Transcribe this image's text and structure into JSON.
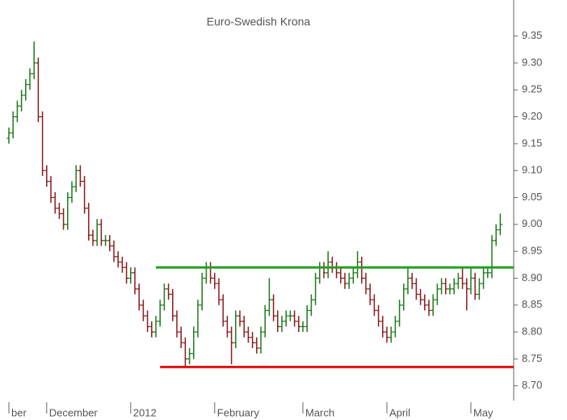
{
  "chart_data": {
    "type": "ohlc",
    "title": "Euro-Swedish Krona",
    "up_color": "#1f7a1f",
    "down_color": "#8a1c1c",
    "ylim": [
      8.68,
      9.42
    ],
    "yticks": [
      {
        "value": 8.7,
        "label": "8.70"
      },
      8.75,
      {
        "value": 8.8,
        "label": "8.80"
      },
      8.85,
      {
        "value": 8.9,
        "label": "8.90"
      },
      8.95,
      {
        "value": 9.0,
        "label": "9.00"
      },
      9.05,
      {
        "value": 9.1,
        "label": "9.10"
      },
      9.15,
      {
        "value": 9.2,
        "label": "9.20"
      },
      9.25,
      {
        "value": 9.3,
        "label": "9.30"
      },
      9.35
    ],
    "xlabels": [
      {
        "label": "ber",
        "index": 0
      },
      {
        "label": "December",
        "index": 9
      },
      {
        "label": "2012",
        "index": 29
      },
      {
        "label": "February",
        "index": 49
      },
      {
        "label": "March",
        "index": 70
      },
      {
        "label": "April",
        "index": 90
      },
      {
        "label": "May",
        "index": 110
      }
    ],
    "lines": [
      {
        "value": 8.92,
        "color": "#22a022",
        "start_index": 35
      },
      {
        "value": 8.735,
        "color": "#e01010",
        "start_index": 36
      }
    ],
    "open": [
      9.16,
      9.17,
      9.2,
      9.22,
      9.24,
      9.26,
      9.28,
      9.3,
      9.2,
      9.1,
      9.08,
      9.05,
      9.03,
      9.02,
      9.0,
      9.05,
      9.07,
      9.1,
      9.08,
      9.03,
      8.98,
      8.97,
      9.0,
      8.97,
      8.97,
      8.96,
      8.94,
      8.93,
      8.92,
      8.9,
      8.91,
      8.88,
      8.85,
      8.83,
      8.81,
      8.8,
      8.82,
      8.85,
      8.88,
      8.87,
      8.83,
      8.8,
      8.78,
      8.75,
      8.76,
      8.8,
      8.85,
      8.9,
      8.92,
      8.9,
      8.89,
      8.86,
      8.82,
      8.8,
      8.78,
      8.83,
      8.82,
      8.8,
      8.79,
      8.78,
      8.77,
      8.8,
      8.84,
      8.86,
      8.83,
      8.81,
      8.82,
      8.83,
      8.83,
      8.82,
      8.81,
      8.81,
      8.84,
      8.86,
      8.9,
      8.92,
      8.91,
      8.93,
      8.92,
      8.91,
      8.9,
      8.89,
      8.9,
      8.91,
      8.93,
      8.9,
      8.88,
      8.86,
      8.84,
      8.82,
      8.8,
      8.79,
      8.8,
      8.82,
      8.85,
      8.88,
      8.9,
      8.89,
      8.87,
      8.86,
      8.85,
      8.84,
      8.86,
      8.88,
      8.89,
      8.88,
      8.88,
      8.89,
      8.9,
      8.89,
      8.88,
      8.9,
      8.87,
      8.89,
      8.91,
      8.91,
      8.97,
      8.99
    ],
    "high": [
      9.18,
      9.21,
      9.23,
      9.25,
      9.27,
      9.29,
      9.34,
      9.31,
      9.21,
      9.11,
      9.09,
      9.06,
      9.04,
      9.03,
      9.06,
      9.08,
      9.11,
      9.11,
      9.09,
      9.04,
      8.99,
      9.01,
      9.01,
      8.98,
      8.98,
      8.97,
      8.95,
      8.94,
      8.93,
      8.92,
      8.92,
      8.89,
      8.86,
      8.84,
      8.82,
      8.83,
      8.86,
      8.89,
      8.89,
      8.88,
      8.84,
      8.81,
      8.79,
      8.77,
      8.81,
      8.86,
      8.91,
      8.93,
      8.93,
      8.91,
      8.9,
      8.87,
      8.83,
      8.81,
      8.84,
      8.84,
      8.83,
      8.81,
      8.8,
      8.79,
      8.81,
      8.85,
      8.9,
      8.87,
      8.84,
      8.83,
      8.84,
      8.84,
      8.84,
      8.83,
      8.82,
      8.85,
      8.87,
      8.91,
      8.93,
      8.93,
      8.95,
      8.94,
      8.93,
      8.92,
      8.91,
      8.91,
      8.92,
      8.95,
      8.94,
      8.91,
      8.89,
      8.87,
      8.85,
      8.83,
      8.81,
      8.81,
      8.83,
      8.86,
      8.89,
      8.92,
      8.91,
      8.9,
      8.88,
      8.87,
      8.86,
      8.87,
      8.89,
      8.9,
      8.9,
      8.89,
      8.9,
      8.91,
      8.92,
      8.9,
      8.92,
      8.91,
      8.9,
      8.92,
      8.92,
      8.98,
      9.0,
      9.02
    ],
    "low": [
      9.15,
      9.16,
      9.19,
      9.21,
      9.23,
      9.25,
      9.27,
      9.19,
      9.09,
      9.07,
      9.04,
      9.02,
      9.01,
      8.99,
      8.99,
      9.04,
      9.06,
      9.07,
      9.02,
      8.97,
      8.96,
      8.96,
      8.96,
      8.96,
      8.95,
      8.93,
      8.92,
      8.91,
      8.89,
      8.89,
      8.87,
      8.84,
      8.82,
      8.8,
      8.79,
      8.79,
      8.81,
      8.84,
      8.86,
      8.82,
      8.79,
      8.77,
      8.735,
      8.74,
      8.75,
      8.79,
      8.84,
      8.89,
      8.89,
      8.88,
      8.85,
      8.81,
      8.79,
      8.74,
      8.77,
      8.81,
      8.79,
      8.78,
      8.77,
      8.76,
      8.76,
      8.79,
      8.83,
      8.82,
      8.8,
      8.8,
      8.81,
      8.82,
      8.81,
      8.8,
      8.8,
      8.8,
      8.83,
      8.85,
      8.89,
      8.9,
      8.9,
      8.91,
      8.9,
      8.89,
      8.88,
      8.88,
      8.89,
      8.9,
      8.89,
      8.87,
      8.85,
      8.83,
      8.81,
      8.79,
      8.78,
      8.78,
      8.79,
      8.81,
      8.84,
      8.87,
      8.88,
      8.86,
      8.85,
      8.84,
      8.83,
      8.83,
      8.85,
      8.87,
      8.87,
      8.87,
      8.87,
      8.88,
      8.88,
      8.84,
      8.87,
      8.86,
      8.86,
      8.88,
      8.9,
      8.9,
      8.96,
      8.98
    ],
    "close": [
      9.17,
      9.2,
      9.22,
      9.24,
      9.26,
      9.28,
      9.3,
      9.2,
      9.1,
      9.08,
      9.05,
      9.03,
      9.02,
      9.0,
      9.05,
      9.07,
      9.1,
      9.08,
      9.03,
      8.98,
      8.97,
      9.0,
      8.97,
      8.97,
      8.96,
      8.94,
      8.93,
      8.92,
      8.9,
      8.91,
      8.88,
      8.85,
      8.83,
      8.81,
      8.8,
      8.82,
      8.85,
      8.88,
      8.87,
      8.83,
      8.8,
      8.78,
      8.75,
      8.76,
      8.8,
      8.85,
      8.9,
      8.92,
      8.9,
      8.89,
      8.86,
      8.82,
      8.8,
      8.78,
      8.83,
      8.82,
      8.8,
      8.79,
      8.78,
      8.77,
      8.8,
      8.84,
      8.86,
      8.83,
      8.81,
      8.82,
      8.83,
      8.83,
      8.82,
      8.81,
      8.81,
      8.84,
      8.86,
      8.9,
      8.92,
      8.91,
      8.93,
      8.92,
      8.91,
      8.9,
      8.89,
      8.9,
      8.91,
      8.93,
      8.9,
      8.88,
      8.86,
      8.84,
      8.82,
      8.8,
      8.79,
      8.8,
      8.82,
      8.85,
      8.88,
      8.9,
      8.89,
      8.87,
      8.86,
      8.85,
      8.84,
      8.86,
      8.88,
      8.89,
      8.88,
      8.88,
      8.89,
      8.9,
      8.89,
      8.88,
      8.9,
      8.87,
      8.89,
      8.91,
      8.91,
      8.97,
      8.99,
      9.0
    ]
  }
}
